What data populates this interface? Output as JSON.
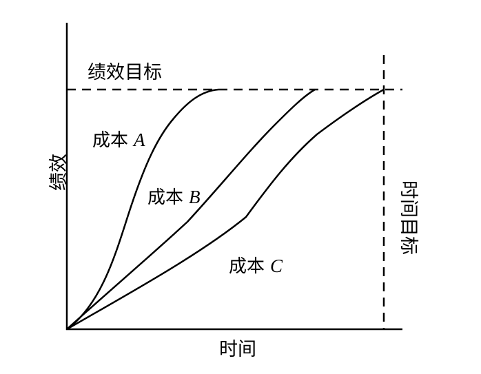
{
  "diagram": {
    "y_axis_label": "绩效",
    "x_axis_label": "时间",
    "performance_target_label": "绩效目标",
    "time_target_label": "时间目标",
    "curves": [
      {
        "prefix": "成本",
        "letter": "A"
      },
      {
        "prefix": "成本",
        "letter": "B"
      },
      {
        "prefix": "成本",
        "letter": "C"
      }
    ]
  },
  "colors": {
    "line": "#000000",
    "background": "#ffffff"
  }
}
